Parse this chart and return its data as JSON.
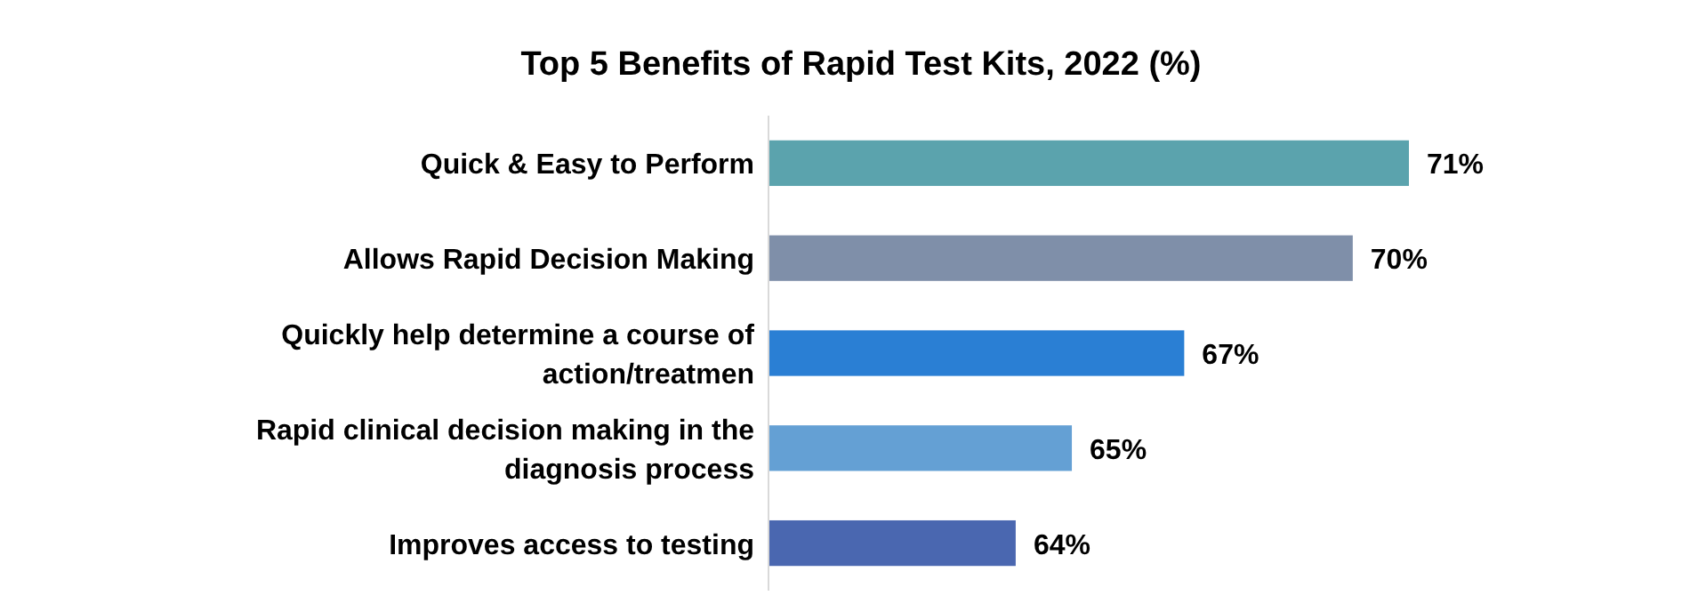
{
  "chart_data": {
    "type": "bar",
    "orientation": "horizontal",
    "title": "Top 5 Benefits of Rapid Test Kits, 2022 (%)",
    "categories": [
      "Quick & Easy to Perform",
      "Allows Rapid Decision Making",
      "Quickly help determine a course of action/treatmen",
      "Rapid clinical decision making in the diagnosis process",
      "Improves access to testing"
    ],
    "values": [
      71,
      70,
      67,
      65,
      64
    ],
    "colors": [
      "#5ba3ad",
      "#7f8fa9",
      "#2a7fd4",
      "#64a0d4",
      "#4a67b0"
    ],
    "value_labels": [
      "71%",
      "70%",
      "67%",
      "65%",
      "64%"
    ],
    "xlim": [
      59.6,
      71
    ]
  }
}
